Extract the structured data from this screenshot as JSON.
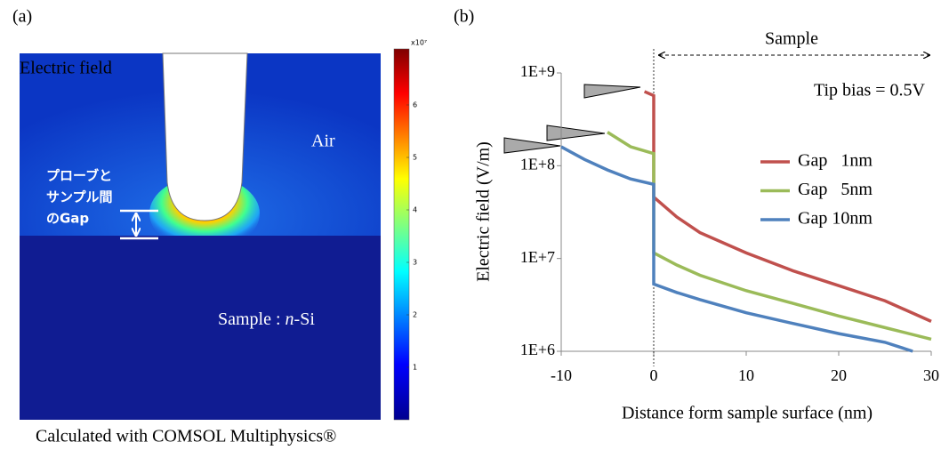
{
  "panel_a": {
    "panel_label": "(a)",
    "field_label": "Electric  field",
    "air_label": "Air",
    "gap_label": [
      "プローブと",
      "サンプル間",
      "のGap"
    ],
    "sample_label": {
      "prefix": "Sample : ",
      "italic": "n",
      "suffix": "-Si"
    },
    "colorbar": {
      "multiplier": "x10⁷",
      "ticks": [
        1,
        2,
        3,
        4,
        5,
        6
      ]
    },
    "caption": "Calculated with COMSOL Multiphysics®"
  },
  "chart_data": {
    "type": "line",
    "panel_label": "(b)",
    "xlabel": "Distance form sample surface (nm)",
    "ylabel": "Electric field (V/m)",
    "annotation": "Tip bias = 0.5V",
    "region_label": "Sample",
    "xlim": [
      -10,
      30
    ],
    "xticks": [
      -10,
      0,
      10,
      20,
      30
    ],
    "ylim": [
      1000000,
      1000000000
    ],
    "log_y": true,
    "yticks": [
      {
        "value": 1000000,
        "label": "1E+6"
      },
      {
        "value": 10000000,
        "label": "1E+7"
      },
      {
        "value": 100000000,
        "label": "1E+8"
      },
      {
        "value": 1000000000,
        "label": "1E+9"
      }
    ],
    "series": [
      {
        "name": "Gap   1nm",
        "color": "#c0504d",
        "x": [
          -1,
          0,
          0,
          2.5,
          5,
          10,
          15,
          20,
          25,
          30
        ],
        "values": [
          630000000,
          570000000,
          46000000,
          28000000,
          19000000,
          11500000,
          7400000,
          5100000,
          3500000,
          2100000
        ]
      },
      {
        "name": "Gap   5nm",
        "color": "#9bbb59",
        "x": [
          -5,
          -2.5,
          0,
          0,
          2.5,
          5,
          10,
          15,
          20,
          25,
          30
        ],
        "values": [
          230000000,
          160000000,
          135000000,
          11500000,
          8500000,
          6600000,
          4500000,
          3300000,
          2400000,
          1800000,
          1350000
        ]
      },
      {
        "name": "Gap 10nm",
        "color": "#4f81bd",
        "x": [
          -10,
          -7.5,
          -5,
          -2.5,
          0,
          0,
          2.5,
          5,
          10,
          15,
          20,
          25,
          28
        ],
        "values": [
          160000000,
          117000000,
          90000000,
          72000000,
          63000000,
          5300000,
          4300000,
          3600000,
          2600000,
          2000000,
          1550000,
          1250000,
          1000000
        ]
      }
    ]
  }
}
